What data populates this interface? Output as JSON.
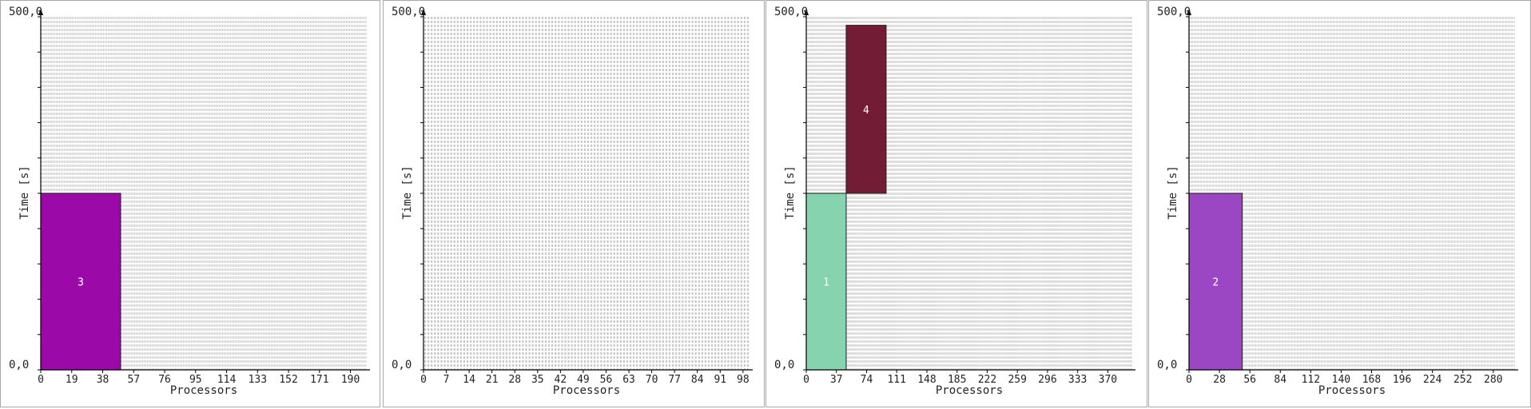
{
  "chart_data": [
    {
      "type": "gantt",
      "xlabel": "Processors",
      "ylabel": "Time [s]",
      "y_top_label": "500,0",
      "y_bottom_label": "0,0",
      "ylim": [
        0,
        500
      ],
      "x_ticks": [
        "0",
        "19",
        "38",
        "57",
        "76",
        "95",
        "114",
        "133",
        "152",
        "171",
        "190"
      ],
      "x_tick_step": 19,
      "x_max": 200,
      "jobs": [
        {
          "label": "3",
          "x_start": 0,
          "x_end": 49,
          "t_start": 0,
          "t_end": 250,
          "color": "#9b09a8"
        }
      ]
    },
    {
      "type": "gantt",
      "xlabel": "Processors",
      "ylabel": "Time [s]",
      "y_top_label": "500,0",
      "y_bottom_label": "0,0",
      "ylim": [
        0,
        500
      ],
      "x_ticks": [
        "0",
        "7",
        "14",
        "21",
        "28",
        "35",
        "42",
        "49",
        "56",
        "63",
        "70",
        "77",
        "84",
        "91",
        "98"
      ],
      "x_tick_step": 7,
      "x_max": 100,
      "jobs": []
    },
    {
      "type": "gantt",
      "xlabel": "Processors",
      "ylabel": "Time [s]",
      "y_top_label": "500,0",
      "y_bottom_label": "0,0",
      "ylim": [
        0,
        500
      ],
      "x_ticks": [
        "0",
        "37",
        "74",
        "111",
        "148",
        "185",
        "222",
        "259",
        "296",
        "333",
        "370"
      ],
      "x_tick_step": 37,
      "x_max": 400,
      "jobs": [
        {
          "label": "1",
          "x_start": 0,
          "x_end": 49,
          "t_start": 0,
          "t_end": 250,
          "color": "#86d3b0"
        },
        {
          "label": "4",
          "x_start": 49,
          "x_end": 98,
          "t_start": 250,
          "t_end": 488,
          "color": "#731c35"
        }
      ]
    },
    {
      "type": "gantt",
      "xlabel": "Processors",
      "ylabel": "Time [s]",
      "y_top_label": "500,0",
      "y_bottom_label": "0,0",
      "ylim": [
        0,
        500
      ],
      "x_ticks": [
        "0",
        "28",
        "56",
        "84",
        "112",
        "140",
        "168",
        "196",
        "224",
        "252",
        "280"
      ],
      "x_tick_step": 28,
      "x_max": 300,
      "jobs": [
        {
          "label": "2",
          "x_start": 0,
          "x_end": 49,
          "t_start": 0,
          "t_end": 250,
          "color": "#9b47c3"
        }
      ]
    }
  ]
}
